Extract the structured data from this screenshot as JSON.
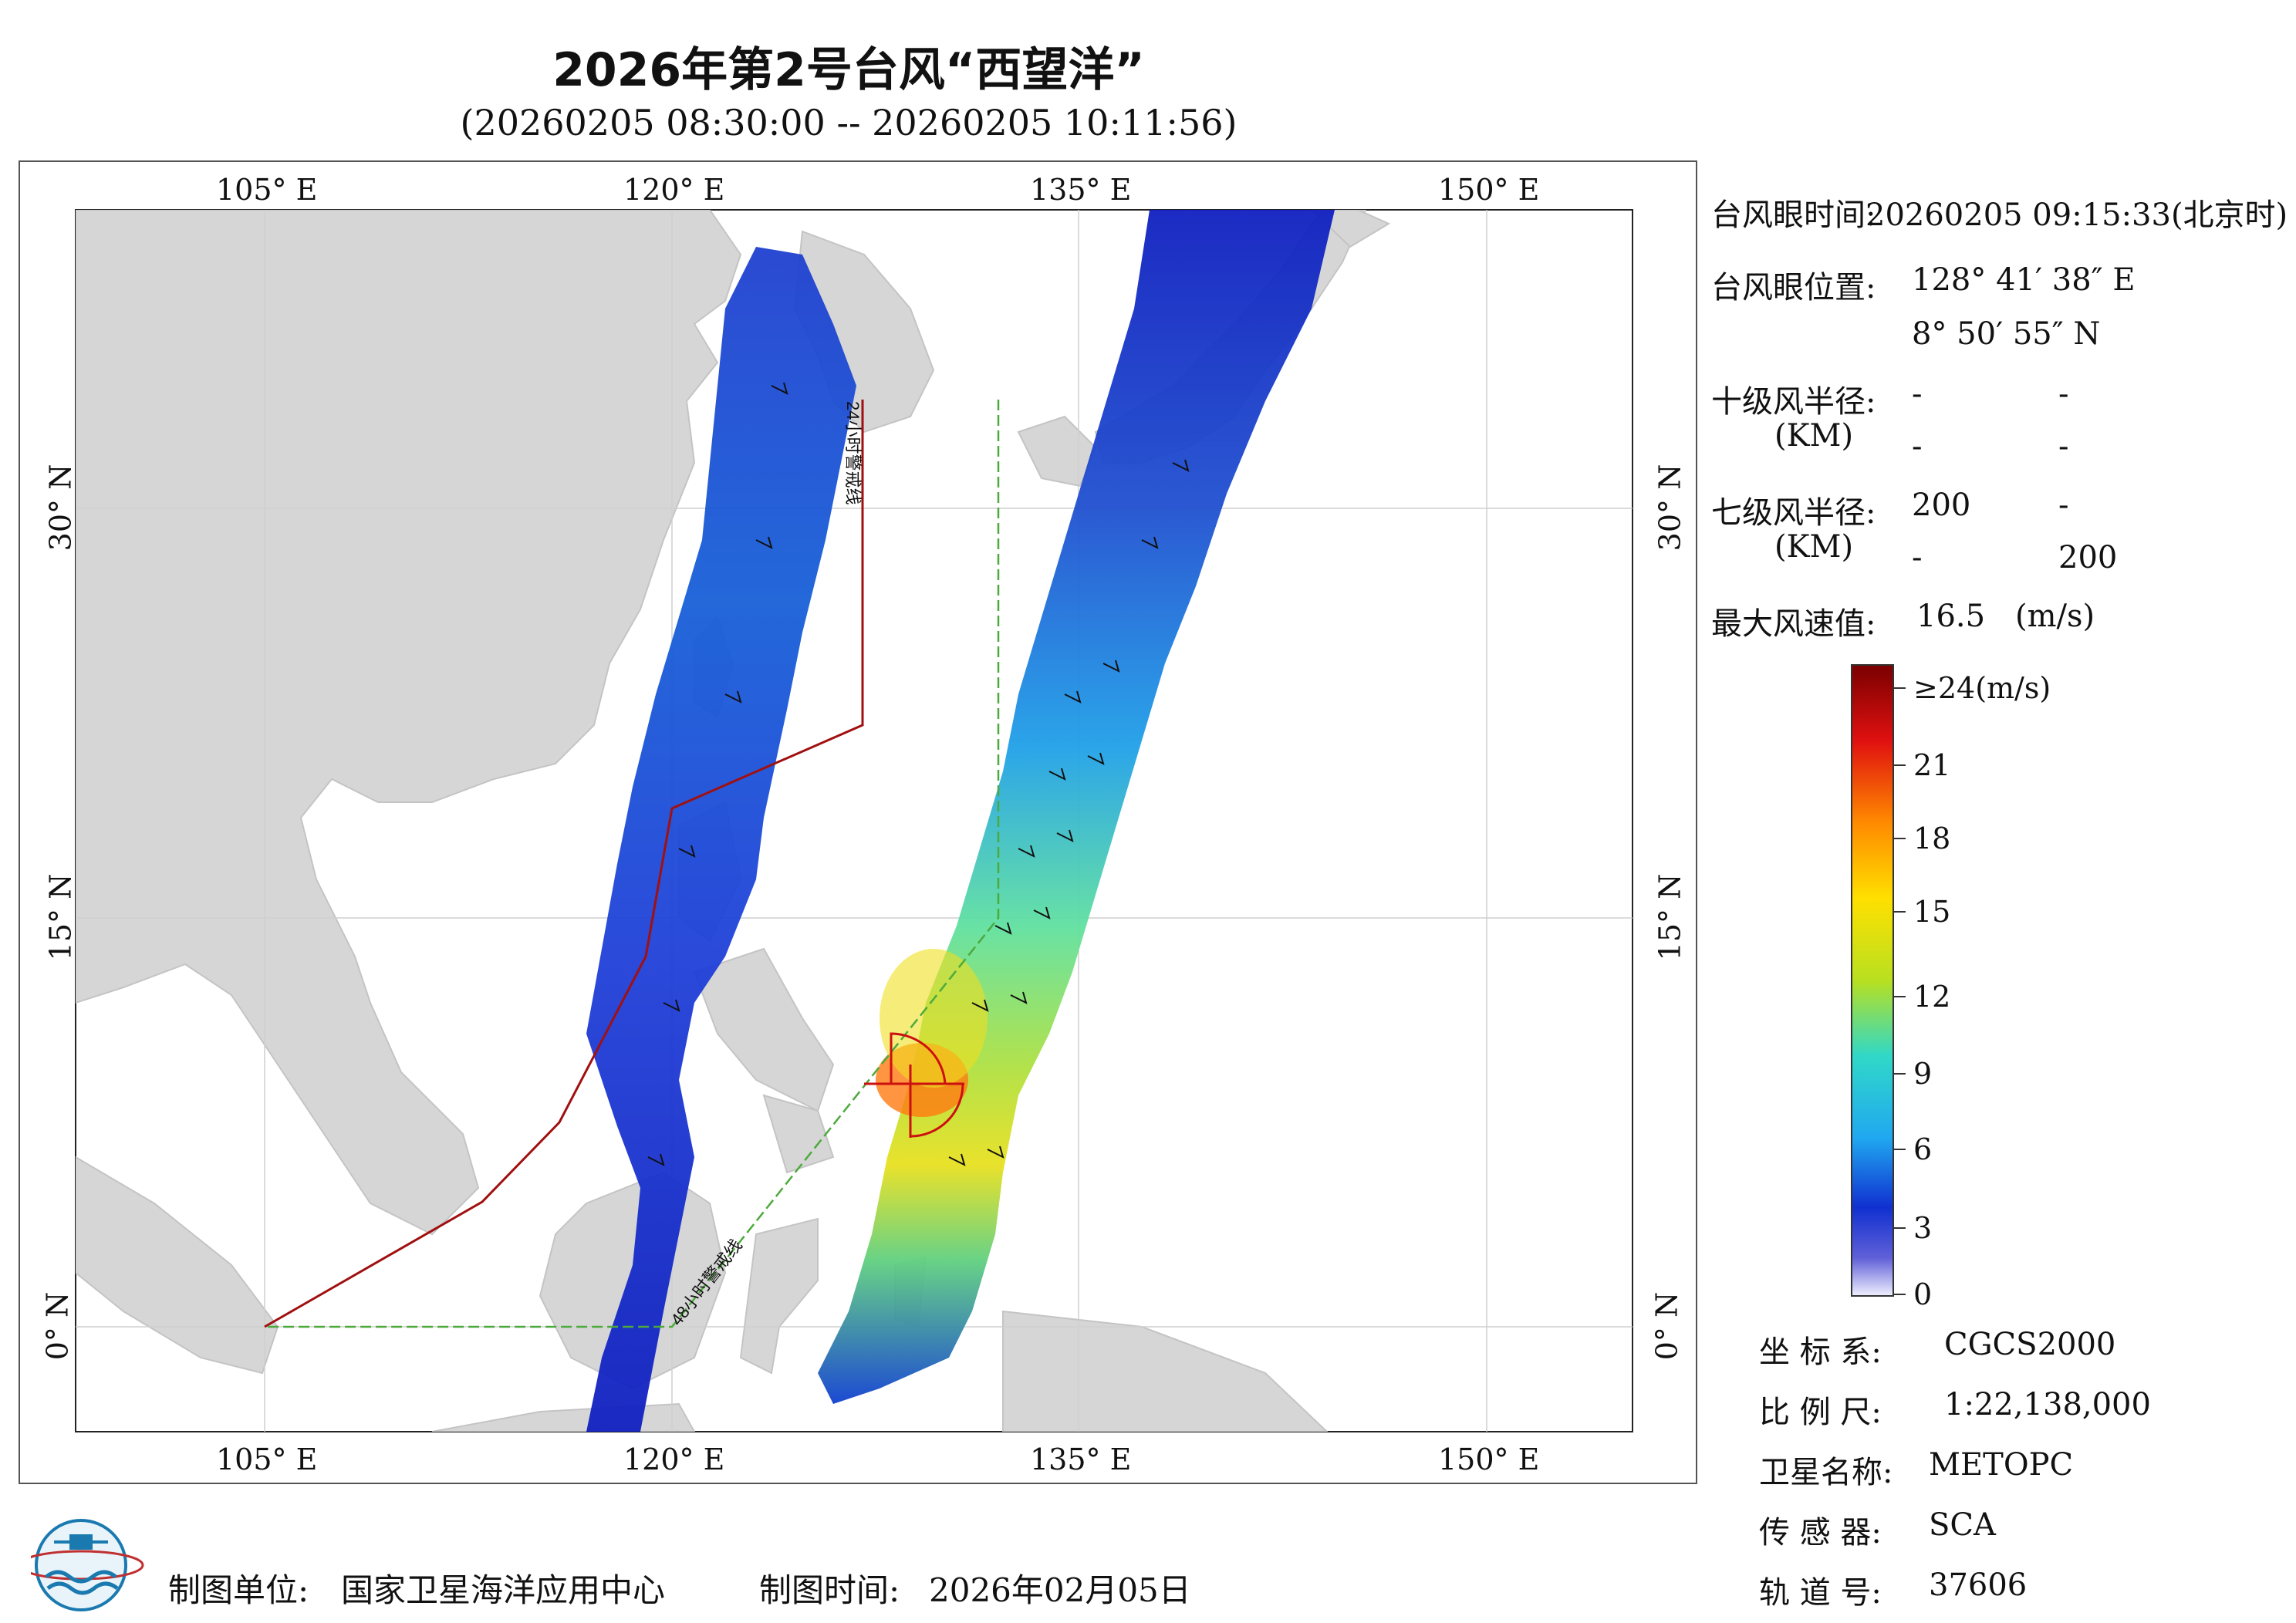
{
  "header": {
    "title": "2026年第2号台风“西望洋”",
    "subtitle": "(20260205 08:30:00 -- 20260205 10:11:56)"
  },
  "axes": {
    "lon_top": [
      "105° E",
      "120° E",
      "135° E",
      "150° E"
    ],
    "lon_bottom": [
      "105° E",
      "120° E",
      "135° E",
      "150° E"
    ],
    "lat_left": [
      "30° N",
      "15° N",
      "0° N"
    ],
    "lat_right": [
      "30° N",
      "15° N",
      "0° N"
    ]
  },
  "warning_lines": {
    "line_24h": "24小时警戒线",
    "line_48h": "48小时警戒线"
  },
  "info_panel": {
    "eye_time_label": "台风眼时间:",
    "eye_time_value": "20260205 09:15:33(北京时)",
    "eye_pos_label": "台风眼位置:",
    "eye_lon": "128° 41′ 38″ E",
    "eye_lat": "8° 50′ 55″ N",
    "r10_label": "十级风半径:",
    "km_label_1": "(KM)",
    "r10_values": [
      "-",
      "-",
      "-",
      "-"
    ],
    "r7_label": "七级风半径:",
    "km_label_2": "(KM)",
    "r7_values": [
      "200",
      "-",
      "-",
      "200"
    ],
    "max_wind_label": "最大风速值:",
    "max_wind_value": "16.5",
    "max_wind_unit": "(m/s)"
  },
  "colorbar": {
    "labels": [
      "≥24(m/s)",
      "21",
      "18",
      "15",
      "12",
      "9",
      "6",
      "3",
      "0"
    ],
    "colors": [
      "#7a0000",
      "#e01010",
      "#ff8a00",
      "#ffe000",
      "#b8e020",
      "#30d8c8",
      "#20a8f0",
      "#1030d0",
      "#c8c8f8"
    ]
  },
  "meta_panel": {
    "crs_label": "坐 标 系:",
    "crs_value": "CGCS2000",
    "scale_label": "比 例 尺:",
    "scale_value": "1:22,138,000",
    "satellite_label": "卫星名称:",
    "satellite_value": "METOPC",
    "sensor_label": "传 感 器:",
    "sensor_value": "SCA",
    "orbit_label": "轨 道 号:",
    "orbit_value": "37606"
  },
  "footer": {
    "unit_label": "制图单位:",
    "unit_value": "国家卫星海洋应用中心",
    "date_label": "制图时间:",
    "date_value": "2026年02月05日"
  },
  "logo": {
    "icon": "noaa-style-globe-logo"
  }
}
